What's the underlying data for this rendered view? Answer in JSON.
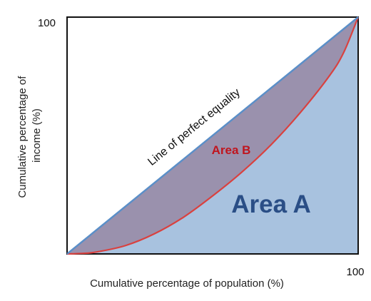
{
  "chart_data": {
    "type": "area",
    "title": "",
    "xlabel": "Cumulative percentage of population (%)",
    "ylabel": "Cumulative percentage of income (%)",
    "xlim": [
      0,
      100
    ],
    "ylim": [
      0,
      100
    ],
    "x_ticks": [
      "100"
    ],
    "y_ticks": [
      "100"
    ],
    "grid": false,
    "series": [
      {
        "name": "Line of perfect equality",
        "x": [
          0,
          100
        ],
        "y": [
          0,
          100
        ]
      },
      {
        "x": [
          0,
          5,
          10,
          20,
          30,
          40,
          50,
          60,
          70,
          80,
          90,
          95,
          100
        ],
        "y": [
          0,
          0.2,
          0.8,
          3.5,
          8.5,
          15.5,
          24.5,
          34.5,
          46,
          59.5,
          75,
          85,
          100
        ]
      }
    ],
    "annotations": {
      "equality_line": "Line of perfect equality",
      "area_b": "Area B",
      "area_a": "Area A"
    }
  },
  "colors": {
    "area_a": "#a8c2df",
    "area_b": "#9a91ad",
    "equality_line": "#5b8fc8",
    "lorenz_curve": "#d9413f",
    "area_b_text": "#c0141d",
    "area_a_text": "#2a4e86",
    "frame": "#111111"
  }
}
